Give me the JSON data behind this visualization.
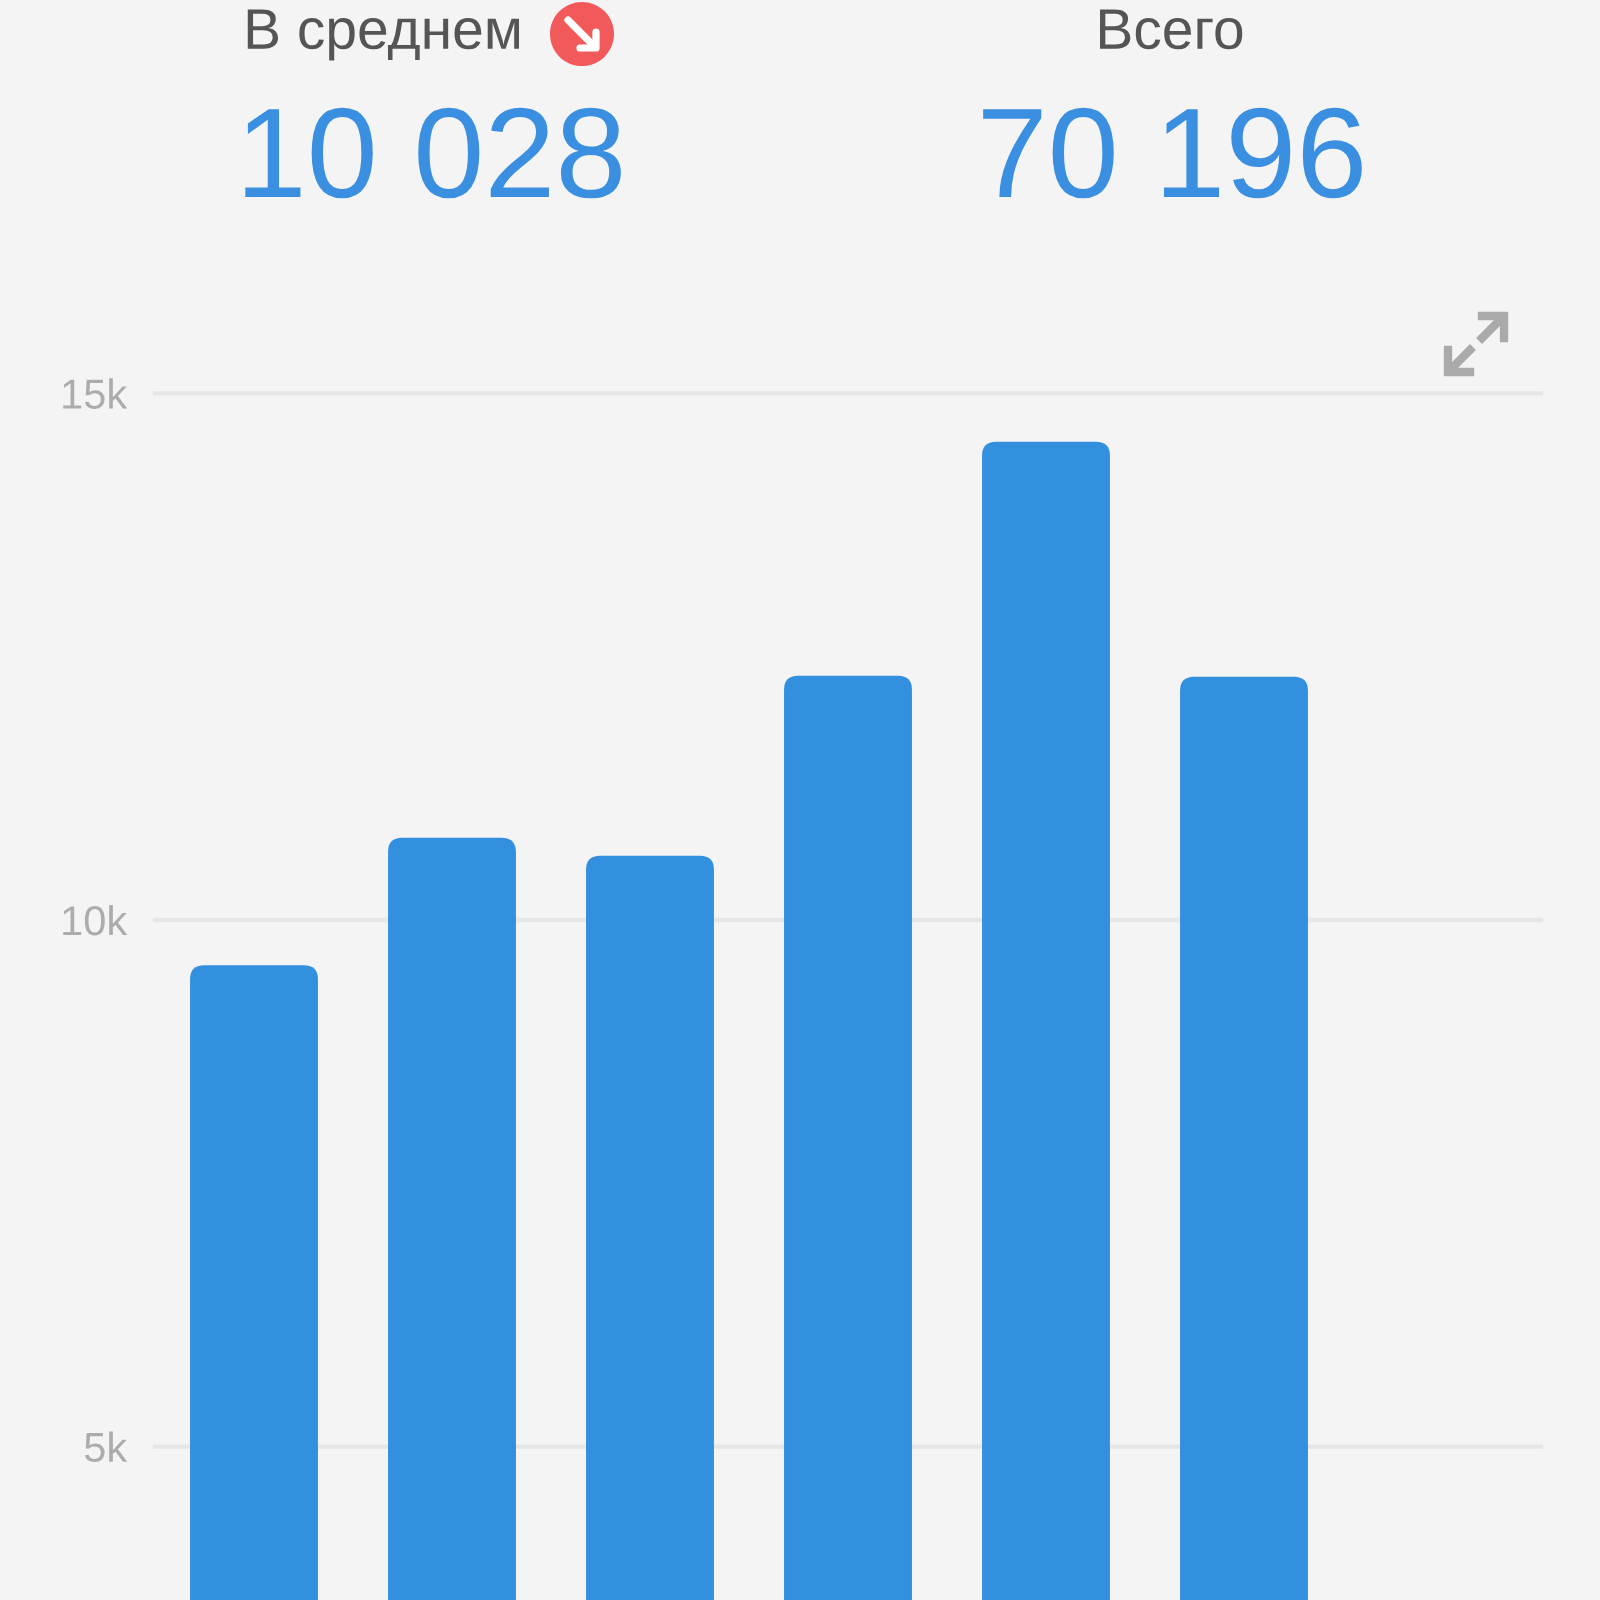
{
  "chart_data": {
    "type": "bar",
    "categories": [
      null,
      null,
      null,
      null,
      null,
      null,
      null
    ],
    "values": [
      9570,
      10780,
      10610,
      12320,
      14540,
      12310,
      null
    ],
    "color": "#3390de",
    "ylim": [
      3500,
      15000
    ],
    "yticks": [
      {
        "value": 5000,
        "label": "5k"
      },
      {
        "value": 10000,
        "label": "10k"
      },
      {
        "value": 15000,
        "label": "15k"
      }
    ],
    "grid": "y",
    "tick_labels": "y",
    "annotations": [
      "В среднем",
      "10 028",
      "Всего",
      "70 196"
    ]
  }
}
